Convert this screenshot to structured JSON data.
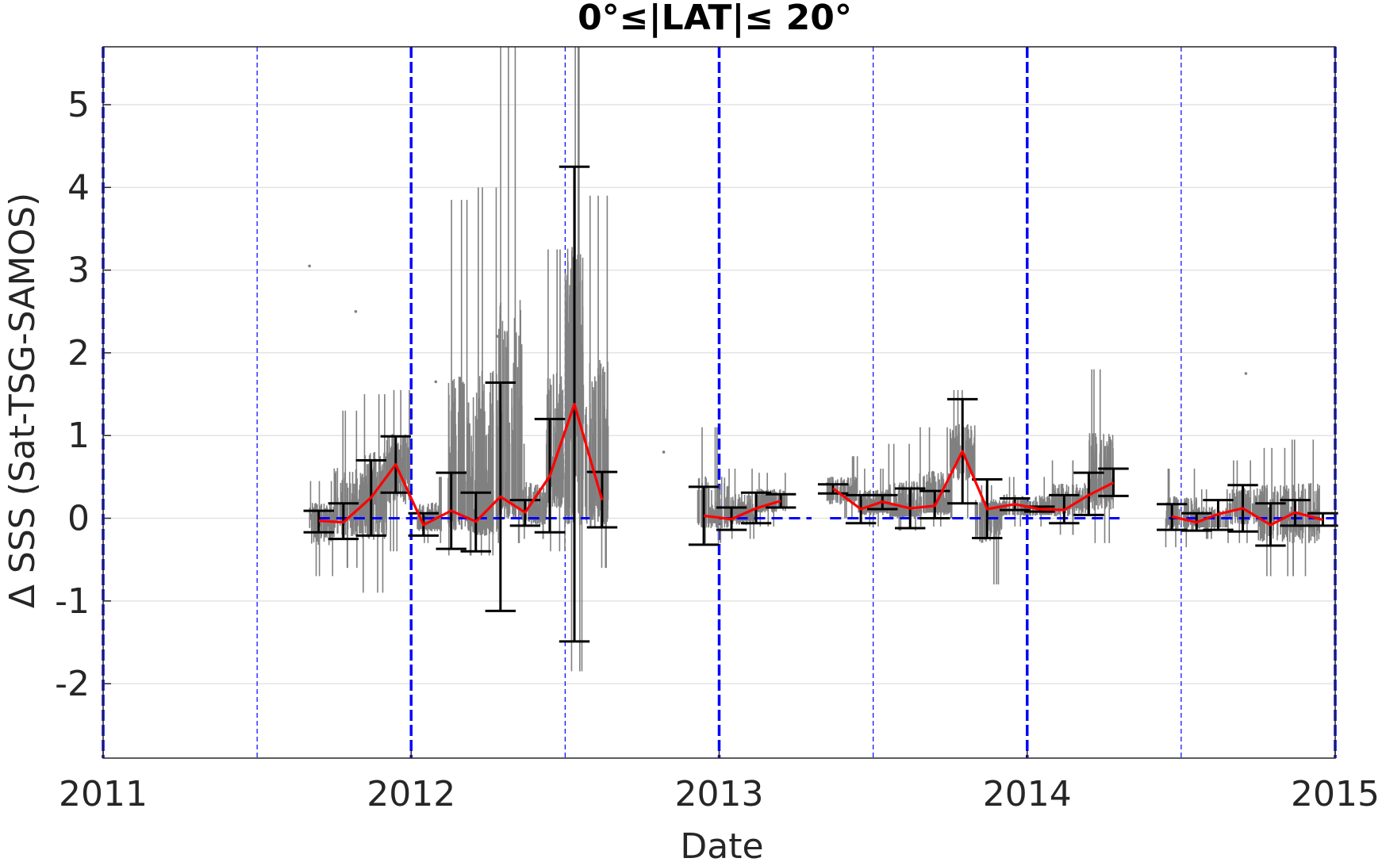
{
  "chart_data": {
    "type": "scatter",
    "title": "0°≤|LAT|≤ 20°",
    "xlabel": "Date",
    "ylabel": "Δ SSS (Sat-TSG-SAMOS)",
    "xlim": [
      2011.0,
      2015.0
    ],
    "ylim": [
      -2.9,
      5.7
    ],
    "x_ticks": [
      2011,
      2012,
      2013,
      2014,
      2015
    ],
    "x_tick_labels": [
      "2011",
      "2012",
      "2013",
      "2014",
      "2015"
    ],
    "y_ticks": [
      -2,
      -1,
      0,
      1,
      2,
      3,
      4,
      5
    ],
    "y_tick_labels": [
      "-2",
      "-1",
      "0",
      "1",
      "2",
      "3",
      "4",
      "5"
    ],
    "grid": "horizontal",
    "colors": {
      "raw": "#808080",
      "mean_line": "#ff0000",
      "error_bars": "#000000",
      "reference": "#0000ff"
    },
    "year_boundaries": [
      2011.0,
      2012.0,
      2013.0,
      2014.0,
      2015.0
    ],
    "half_year_lines": [
      2011.5,
      2012.5,
      2013.5,
      2014.5
    ],
    "zero_reference_segments": [
      [
        2011.7,
        2012.58
      ],
      [
        2013.0,
        2013.3
      ],
      [
        2013.36,
        2014.3
      ],
      [
        2014.46,
        2015.0
      ]
    ],
    "raw_clusters": [
      {
        "x0": 2011.67,
        "x1": 2011.75,
        "ymin": -0.7,
        "ymax": 0.45,
        "center": -0.02
      },
      {
        "x0": 2011.75,
        "x1": 2011.84,
        "ymin": -0.6,
        "ymax": 1.3,
        "center": 0.05
      },
      {
        "x0": 2011.84,
        "x1": 2011.92,
        "ymin": -0.9,
        "ymax": 1.5,
        "center": 0.25
      },
      {
        "x0": 2011.92,
        "x1": 2012.0,
        "ymin": -0.4,
        "ymax": 1.55,
        "center": 0.6
      },
      {
        "x0": 2012.02,
        "x1": 2012.1,
        "ymin": -0.3,
        "ymax": 0.5,
        "center": -0.05
      },
      {
        "x0": 2012.12,
        "x1": 2012.2,
        "ymin": -0.45,
        "ymax": 3.85,
        "center": 0.08
      },
      {
        "x0": 2012.2,
        "x1": 2012.28,
        "ymin": -0.45,
        "ymax": 4.0,
        "center": -0.02
      },
      {
        "x0": 2012.28,
        "x1": 2012.36,
        "ymin": -0.3,
        "ymax": 5.7,
        "center": 0.22
      },
      {
        "x0": 2012.36,
        "x1": 2012.44,
        "ymin": -0.25,
        "ymax": 0.9,
        "center": 0.06
      },
      {
        "x0": 2012.44,
        "x1": 2012.5,
        "ymin": -0.4,
        "ymax": 3.25,
        "center": 0.55
      },
      {
        "x0": 2012.5,
        "x1": 2012.56,
        "ymin": -1.85,
        "ymax": 5.7,
        "center": 1.3
      },
      {
        "x0": 2012.56,
        "x1": 2012.64,
        "ymin": -0.6,
        "ymax": 3.9,
        "center": 0.3
      },
      {
        "x0": 2012.93,
        "x1": 2013.03,
        "ymin": -0.3,
        "ymax": 1.1,
        "center": 0.02
      },
      {
        "x0": 2013.03,
        "x1": 2013.12,
        "ymin": -0.25,
        "ymax": 0.6,
        "center": 0.05
      },
      {
        "x0": 2013.12,
        "x1": 2013.22,
        "ymin": -0.1,
        "ymax": 0.55,
        "center": 0.2
      },
      {
        "x0": 2013.35,
        "x1": 2013.45,
        "ymin": 0.0,
        "ymax": 0.75,
        "center": 0.3
      },
      {
        "x0": 2013.45,
        "x1": 2013.55,
        "ymin": -0.1,
        "ymax": 0.6,
        "center": 0.15
      },
      {
        "x0": 2013.55,
        "x1": 2013.65,
        "ymin": -0.15,
        "ymax": 0.9,
        "center": 0.1
      },
      {
        "x0": 2013.65,
        "x1": 2013.75,
        "ymin": -0.1,
        "ymax": 1.1,
        "center": 0.15
      },
      {
        "x0": 2013.75,
        "x1": 2013.83,
        "ymin": 0.0,
        "ymax": 1.55,
        "center": 0.8
      },
      {
        "x0": 2013.83,
        "x1": 2013.92,
        "ymin": -0.8,
        "ymax": 0.4,
        "center": 0.1
      },
      {
        "x0": 2013.92,
        "x1": 2014.08,
        "ymin": -0.1,
        "ymax": 0.5,
        "center": 0.12
      },
      {
        "x0": 2014.08,
        "x1": 2014.2,
        "ymin": -0.2,
        "ymax": 0.7,
        "center": 0.2
      },
      {
        "x0": 2014.2,
        "x1": 2014.28,
        "ymin": -0.3,
        "ymax": 1.8,
        "center": 0.4
      },
      {
        "x0": 2014.45,
        "x1": 2014.55,
        "ymin": -0.35,
        "ymax": 0.6,
        "center": 0.0
      },
      {
        "x0": 2014.55,
        "x1": 2014.65,
        "ymin": -0.25,
        "ymax": 0.35,
        "center": -0.03
      },
      {
        "x0": 2014.65,
        "x1": 2014.75,
        "ymin": -0.3,
        "ymax": 0.7,
        "center": 0.1
      },
      {
        "x0": 2014.75,
        "x1": 2014.85,
        "ymin": -0.7,
        "ymax": 0.85,
        "center": 0.05
      },
      {
        "x0": 2014.85,
        "x1": 2014.95,
        "ymin": -0.7,
        "ymax": 0.95,
        "center": 0.0
      }
    ],
    "outliers": [
      [
        2011.67,
        3.05
      ],
      [
        2011.82,
        2.5
      ],
      [
        2012.08,
        1.65
      ],
      [
        2012.28,
        2.2
      ],
      [
        2012.82,
        0.8
      ],
      [
        2014.71,
        1.75
      ]
    ],
    "error_bars": [
      {
        "x": 2011.7,
        "lo": -0.17,
        "hi": 0.09,
        "mean": -0.03
      },
      {
        "x": 2011.78,
        "lo": -0.25,
        "hi": 0.18,
        "mean": -0.05
      },
      {
        "x": 2011.87,
        "lo": -0.21,
        "hi": 0.7,
        "mean": 0.25
      },
      {
        "x": 2011.95,
        "lo": 0.31,
        "hi": 0.99,
        "mean": 0.65
      },
      {
        "x": 2012.04,
        "lo": -0.21,
        "hi": 0.06,
        "mean": -0.08
      },
      {
        "x": 2012.13,
        "lo": -0.37,
        "hi": 0.55,
        "mean": 0.09
      },
      {
        "x": 2012.21,
        "lo": -0.4,
        "hi": 0.31,
        "mean": -0.04
      },
      {
        "x": 2012.29,
        "lo": -1.12,
        "hi": 1.64,
        "mean": 0.26
      },
      {
        "x": 2012.37,
        "lo": -0.09,
        "hi": 0.22,
        "mean": 0.07
      },
      {
        "x": 2012.45,
        "lo": -0.17,
        "hi": 1.2,
        "mean": 0.51
      },
      {
        "x": 2012.53,
        "lo": -1.49,
        "hi": 4.25,
        "mean": 1.38
      },
      {
        "x": 2012.62,
        "lo": -0.11,
        "hi": 0.56,
        "mean": 0.22
      },
      {
        "x": 2012.95,
        "lo": -0.32,
        "hi": 0.38,
        "mean": 0.03
      },
      {
        "x": 2013.04,
        "lo": -0.14,
        "hi": 0.13,
        "mean": -0.01
      },
      {
        "x": 2013.12,
        "lo": -0.06,
        "hi": 0.31,
        "mean": 0.12
      },
      {
        "x": 2013.2,
        "lo": 0.13,
        "hi": 0.29,
        "mean": 0.21
      },
      {
        "x": 2013.37,
        "lo": 0.3,
        "hi": 0.41,
        "mean": 0.36
      },
      {
        "x": 2013.46,
        "lo": -0.06,
        "hi": 0.28,
        "mean": 0.11
      },
      {
        "x": 2013.53,
        "lo": 0.11,
        "hi": 0.28,
        "mean": 0.2
      },
      {
        "x": 2013.62,
        "lo": -0.12,
        "hi": 0.36,
        "mean": 0.12
      },
      {
        "x": 2013.7,
        "lo": 0.0,
        "hi": 0.33,
        "mean": 0.15
      },
      {
        "x": 2013.79,
        "lo": 0.18,
        "hi": 1.44,
        "mean": 0.81
      },
      {
        "x": 2013.87,
        "lo": -0.24,
        "hi": 0.47,
        "mean": 0.11
      },
      {
        "x": 2013.96,
        "lo": 0.1,
        "hi": 0.24,
        "mean": 0.17
      },
      {
        "x": 2014.04,
        "lo": 0.08,
        "hi": 0.14,
        "mean": 0.11
      },
      {
        "x": 2014.12,
        "lo": -0.06,
        "hi": 0.28,
        "mean": 0.1
      },
      {
        "x": 2014.2,
        "lo": 0.04,
        "hi": 0.55,
        "mean": 0.28
      },
      {
        "x": 2014.28,
        "lo": 0.27,
        "hi": 0.6,
        "mean": 0.43
      },
      {
        "x": 2014.47,
        "lo": -0.14,
        "hi": 0.17,
        "mean": 0.02
      },
      {
        "x": 2014.55,
        "lo": -0.15,
        "hi": 0.06,
        "mean": -0.05
      },
      {
        "x": 2014.62,
        "lo": -0.14,
        "hi": 0.22,
        "mean": 0.05
      },
      {
        "x": 2014.7,
        "lo": -0.16,
        "hi": 0.4,
        "mean": 0.12
      },
      {
        "x": 2014.79,
        "lo": -0.33,
        "hi": 0.18,
        "mean": -0.08
      },
      {
        "x": 2014.87,
        "lo": -0.09,
        "hi": 0.22,
        "mean": 0.07
      },
      {
        "x": 2014.96,
        "lo": -0.09,
        "hi": 0.06,
        "mean": -0.02
      }
    ],
    "mean_line_segments": [
      [
        0,
        11
      ],
      [
        12,
        15
      ],
      [
        16,
        27
      ],
      [
        28,
        34
      ]
    ]
  }
}
